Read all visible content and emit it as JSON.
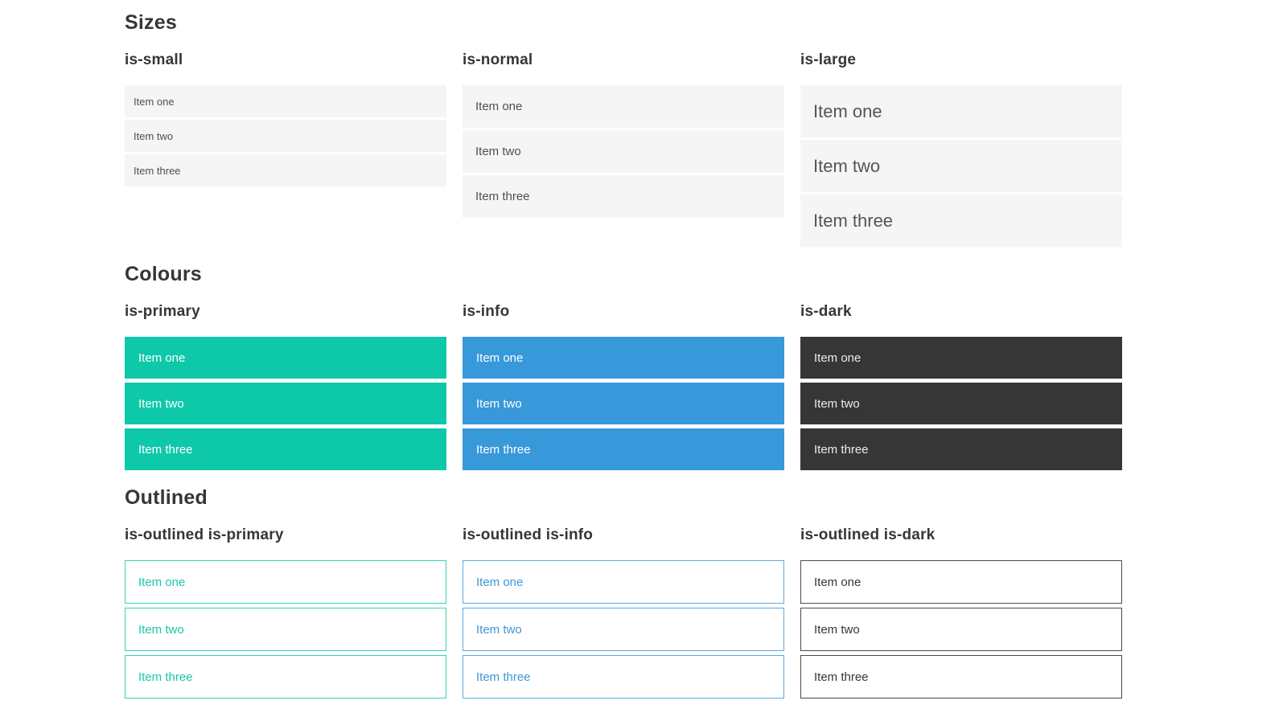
{
  "colors": {
    "primary": "#0ec8aa",
    "info": "#3798da",
    "dark": "#363636",
    "item_bg": "#f5f5f5",
    "heading": "#363636"
  },
  "sections": [
    {
      "title": "Sizes",
      "groups": [
        {
          "label": "is-small",
          "items": [
            "Item one",
            "Item two",
            "Item three"
          ]
        },
        {
          "label": "is-normal",
          "items": [
            "Item one",
            "Item two",
            "Item three"
          ]
        },
        {
          "label": "is-large",
          "items": [
            "Item one",
            "Item two",
            "Item three"
          ]
        }
      ]
    },
    {
      "title": "Colours",
      "groups": [
        {
          "label": "is-primary",
          "items": [
            "Item one",
            "Item two",
            "Item three"
          ]
        },
        {
          "label": "is-info",
          "items": [
            "Item one",
            "Item two",
            "Item three"
          ]
        },
        {
          "label": "is-dark",
          "items": [
            "Item one",
            "Item two",
            "Item three"
          ]
        }
      ]
    },
    {
      "title": "Outlined",
      "groups": [
        {
          "label": "is-outlined is-primary",
          "items": [
            "Item one",
            "Item two",
            "Item three"
          ]
        },
        {
          "label": "is-outlined is-info",
          "items": [
            "Item one",
            "Item two",
            "Item three"
          ]
        },
        {
          "label": "is-outlined is-dark",
          "items": [
            "Item one",
            "Item two",
            "Item three"
          ]
        }
      ]
    }
  ]
}
